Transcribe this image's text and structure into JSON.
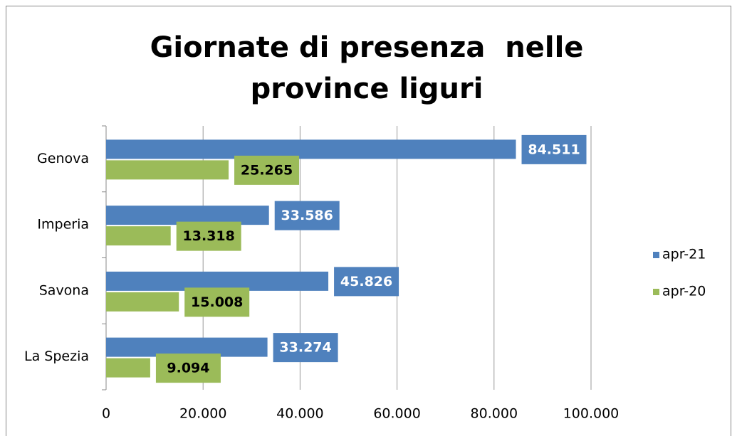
{
  "chart_data": {
    "type": "bar",
    "orientation": "horizontal",
    "title": "Giornate di presenza  nelle province liguri",
    "categories": [
      "Genova",
      "Imperia",
      "Savona",
      "La Spezia"
    ],
    "series": [
      {
        "name": "apr-21",
        "color": "#4f81bd",
        "label_text_color": "#ffffff",
        "values": [
          84511,
          33586,
          45826,
          33274
        ],
        "value_labels": [
          "84.511",
          "33.586",
          "45.826",
          "33.274"
        ]
      },
      {
        "name": "apr-20",
        "color": "#9bbb59",
        "label_text_color": "#000000",
        "values": [
          25265,
          13318,
          15008,
          9094
        ],
        "value_labels": [
          "25.265",
          "13.318",
          "15.008",
          "9.094"
        ]
      }
    ],
    "xlim": [
      0,
      100000
    ],
    "xticks": [
      0,
      {
        "value": 20000,
        "label": "20.000"
      },
      {
        "value": 40000,
        "label": "40.000"
      },
      {
        "value": 60000,
        "label": "60.000"
      },
      {
        "value": 80000,
        "label": "80.000"
      },
      {
        "value": 100000,
        "label": "100.000"
      }
    ],
    "grid": true,
    "legend": "right"
  }
}
